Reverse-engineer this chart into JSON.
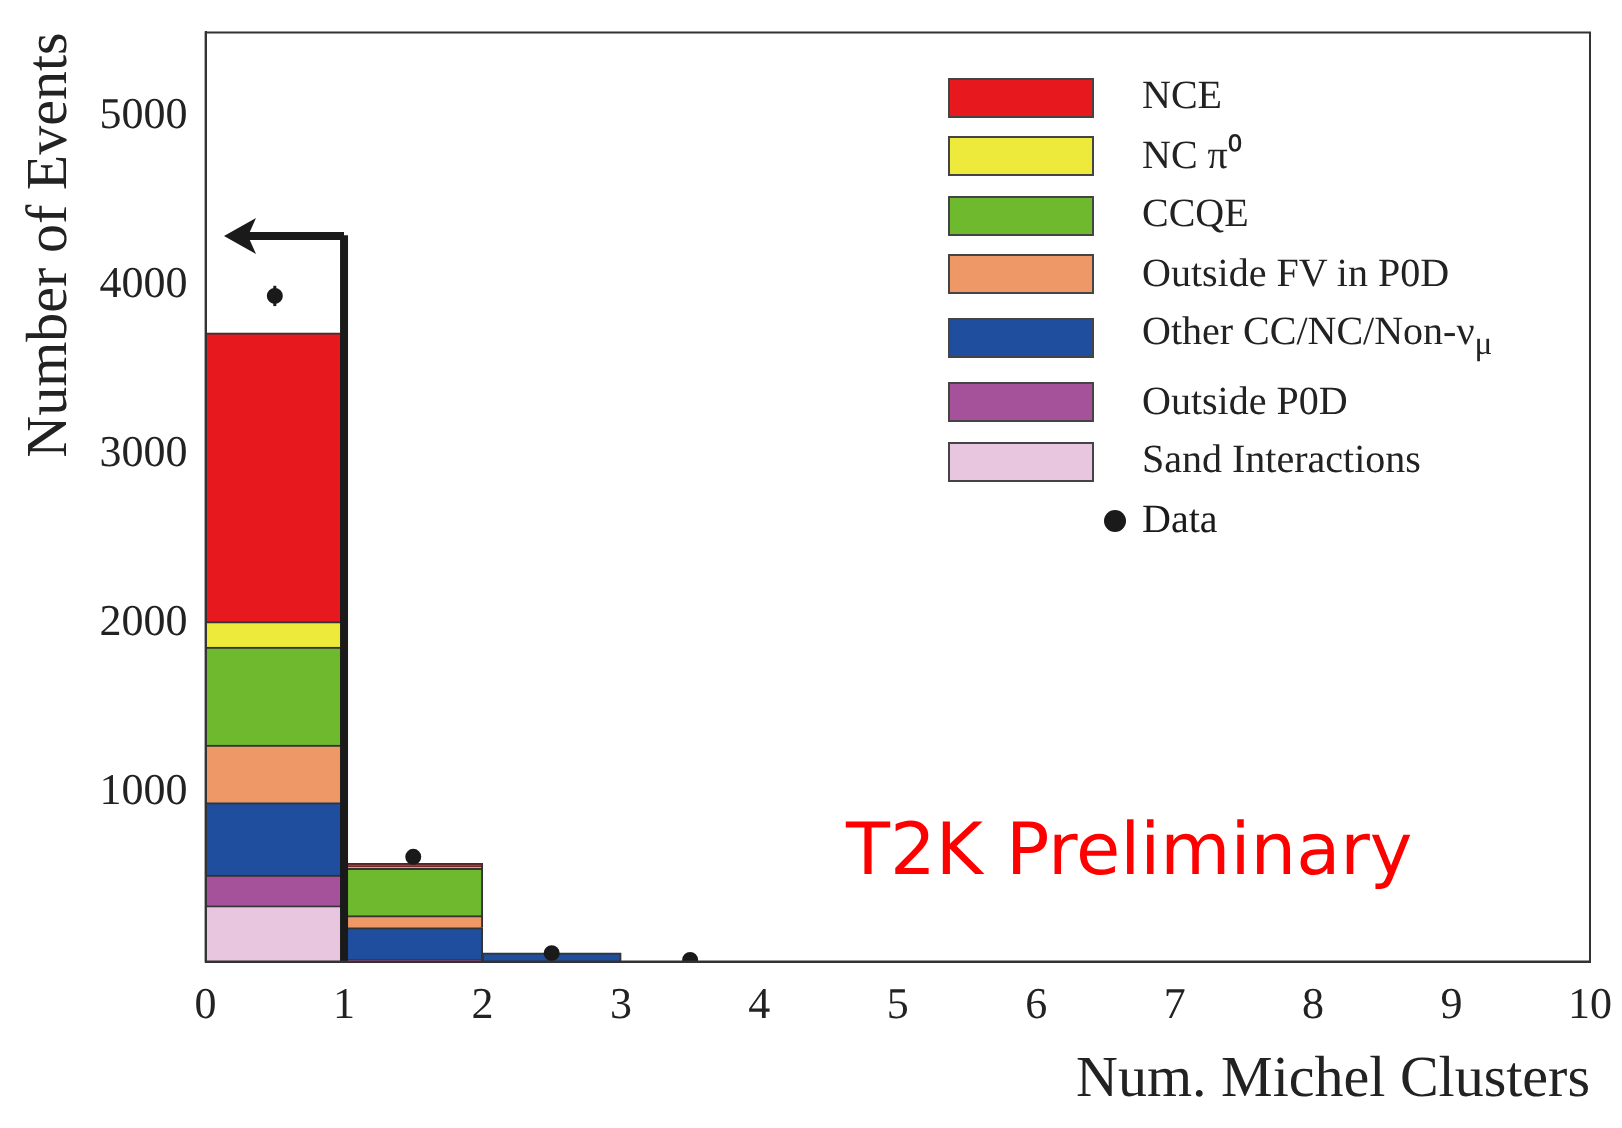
{
  "chart_data": {
    "type": "bar",
    "xlabel": "Num. Michel Clusters",
    "ylabel": "Number of Events",
    "x": [
      0.5,
      1.5,
      2.5
    ],
    "stacked": true,
    "series": [
      {
        "name": "Sand Interactions",
        "color": "#e8c6df",
        "values": [
          330,
          0,
          0
        ]
      },
      {
        "name": "Outside P0D",
        "color": "#a5529b",
        "values": [
          180,
          10,
          0
        ]
      },
      {
        "name": "Other CC/NC/Non-ν$_{μ}$",
        "color": "#1f4e9e",
        "values": [
          430,
          190,
          50
        ]
      },
      {
        "name": "Outside FV in P0D",
        "color": "#ef9867",
        "values": [
          340,
          70,
          0
        ]
      },
      {
        "name": "CCQE",
        "color": "#6eb92e",
        "values": [
          580,
          280,
          0
        ]
      },
      {
        "name": "NC π⁰",
        "color": "#eeea3c",
        "values": [
          150,
          10,
          0
        ]
      },
      {
        "name": "NCE",
        "color": "#e7191f",
        "values": [
          1710,
          20,
          0
        ]
      },
      {
        "name": "Data",
        "type": "scatter",
        "color": "#1a1a1a",
        "x": [
          0.5,
          1.5,
          2.5,
          3.5
        ],
        "values": [
          3940,
          620,
          50,
          10
        ],
        "errors": [
          60,
          null,
          null,
          null
        ]
      }
    ],
    "xlim": [
      0,
      10
    ],
    "xticks": [
      0,
      1,
      2,
      3,
      4,
      5,
      6,
      7,
      8,
      9,
      10
    ],
    "ylim": [
      0,
      5500
    ],
    "yticks": [
      1000,
      2000,
      3000,
      4000,
      5000
    ],
    "grid": false,
    "legend": "top right",
    "marker": "circle",
    "ref_lines": [
      {
        "axis": "x",
        "value": 1,
        "color": "#1a1a1a"
      }
    ],
    "annotations": [
      "T2K Preliminary"
    ]
  }
}
